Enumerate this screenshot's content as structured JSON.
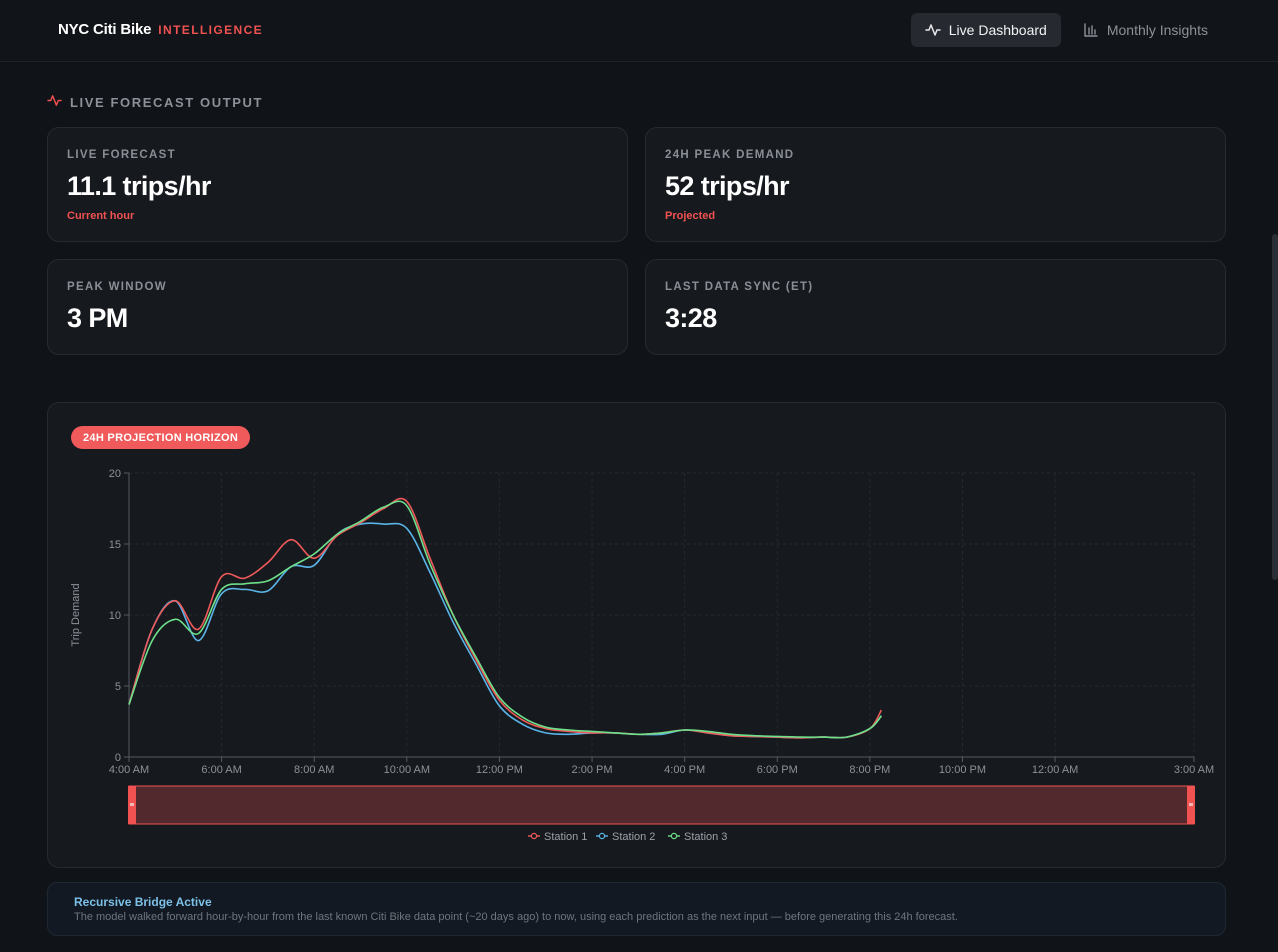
{
  "header": {
    "brand": "NYC Citi Bike",
    "brand_sub": "INTELLIGENCE",
    "nav": [
      {
        "label": "Live Dashboard",
        "icon": "activity-icon",
        "active": true
      },
      {
        "label": "Monthly Insights",
        "icon": "bar-chart-icon",
        "active": false
      }
    ]
  },
  "section": {
    "title": "LIVE FORECAST OUTPUT",
    "icon": "activity-icon"
  },
  "kpis": [
    {
      "label": "LIVE FORECAST",
      "value": "11.1 trips/hr",
      "sub": "Current hour"
    },
    {
      "label": "24H PEAK DEMAND",
      "value": "52 trips/hr",
      "sub": "Projected"
    },
    {
      "label": "PEAK WINDOW",
      "value": "3 PM",
      "sub": ""
    },
    {
      "label": "LAST DATA SYNC (ET)",
      "value": "3:28",
      "sub": ""
    }
  ],
  "chart_panel": {
    "badge": "24H PROJECTION HORIZON"
  },
  "colors": {
    "accent": "#f05252",
    "station1": "#f05a5a",
    "station2": "#5ab4e8",
    "station3": "#6ee08a"
  },
  "chart_data": {
    "type": "line",
    "ylabel": "Trip Demand",
    "xlabel": "",
    "ylim": [
      0,
      20
    ],
    "yticks": [
      0,
      5,
      10,
      15,
      20
    ],
    "x_ticks": [
      "4:00 AM",
      "6:00 AM",
      "8:00 AM",
      "10:00 AM",
      "12:00 PM",
      "2:00 PM",
      "4:00 PM",
      "6:00 PM",
      "8:00 PM",
      "10:00 PM",
      "12:00 AM",
      "3:00 AM"
    ],
    "x_hours": [
      0,
      2,
      4,
      6,
      8,
      10,
      12,
      14,
      16,
      18,
      20,
      23
    ],
    "xlim": [
      0,
      23
    ],
    "grid": true,
    "legend": "bottom-center",
    "series": [
      {
        "name": "Station 1",
        "x": [
          0,
          0.5,
          1,
          1.5,
          2,
          2.5,
          3,
          3.5,
          4,
          4.5,
          5,
          5.5,
          6,
          6.5,
          7,
          7.5,
          8,
          8.5,
          9,
          9.5,
          10,
          10.5,
          11,
          11.5,
          12,
          12.5,
          13,
          13.5,
          14,
          14.5,
          15,
          15.5,
          16,
          16.25
        ],
        "y": [
          3.7,
          9.0,
          11.0,
          9.0,
          12.7,
          12.6,
          13.7,
          15.3,
          14.0,
          15.6,
          16.5,
          17.5,
          18.0,
          14.0,
          10.0,
          6.8,
          4.0,
          2.6,
          2.0,
          1.8,
          1.7,
          1.7,
          1.6,
          1.7,
          1.9,
          1.7,
          1.5,
          1.45,
          1.4,
          1.35,
          1.4,
          1.4,
          2.0,
          3.3
        ]
      },
      {
        "name": "Station 2",
        "x": [
          0,
          0.5,
          1,
          1.5,
          2,
          2.5,
          3,
          3.5,
          4,
          4.5,
          5,
          5.5,
          6,
          6.5,
          7,
          7.5,
          8,
          8.5,
          9,
          9.5,
          10,
          10.5,
          11,
          11.5,
          12,
          12.5,
          13,
          13.5,
          14,
          14.5,
          15,
          15.5,
          16,
          16.25
        ],
        "y": [
          3.7,
          9.0,
          11.0,
          8.2,
          11.5,
          11.8,
          11.7,
          13.4,
          13.5,
          15.7,
          16.4,
          16.4,
          16.1,
          13.0,
          9.5,
          6.5,
          3.6,
          2.3,
          1.7,
          1.6,
          1.7,
          1.7,
          1.6,
          1.6,
          1.9,
          1.7,
          1.5,
          1.45,
          1.4,
          1.35,
          1.4,
          1.4,
          2.0,
          2.9
        ]
      },
      {
        "name": "Station 3",
        "x": [
          0,
          0.5,
          1,
          1.5,
          2,
          2.5,
          3,
          3.5,
          4,
          4.5,
          5,
          5.5,
          6,
          6.5,
          7,
          7.5,
          8,
          8.5,
          9,
          9.5,
          10,
          10.5,
          11,
          11.5,
          12,
          12.5,
          13,
          13.5,
          14,
          14.5,
          15,
          15.5,
          16,
          16.25
        ],
        "y": [
          3.7,
          8.2,
          9.7,
          8.7,
          11.8,
          12.2,
          12.4,
          13.4,
          14.3,
          15.7,
          16.6,
          17.6,
          17.7,
          13.6,
          10.0,
          7.0,
          4.2,
          2.8,
          2.1,
          1.9,
          1.8,
          1.7,
          1.6,
          1.7,
          1.9,
          1.8,
          1.6,
          1.5,
          1.45,
          1.4,
          1.4,
          1.4,
          2.0,
          2.9
        ]
      }
    ]
  },
  "bridge_note": {
    "title": "Recursive Bridge Active",
    "body": "The model walked forward hour-by-hour from the last known Citi Bike data point (~20 days ago) to now, using each prediction as the next input — before generating this 24h forecast."
  }
}
